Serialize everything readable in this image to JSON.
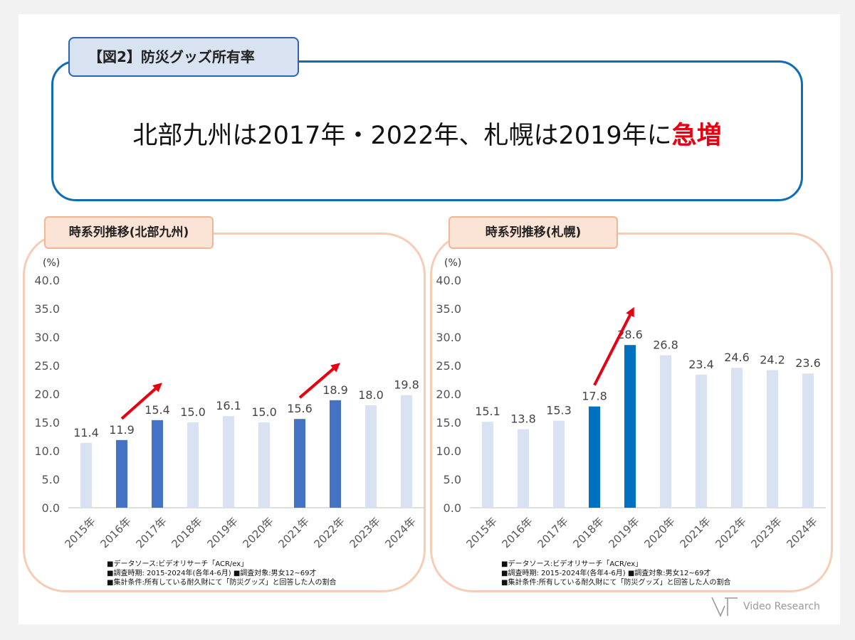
{
  "figure_label": "【図2】防災グッズ所有率",
  "headline": {
    "text": "北部九州は2017年・2022年、札幌は2019年に",
    "emphasis": "急増"
  },
  "colors": {
    "highlight_bar": "#4472c4",
    "highlight_bar_sapporo": "#0070c0",
    "base_bar": "#d9e2f3",
    "arrow": "#e60012",
    "headline_emphasis": "#e60012"
  },
  "chart_data": [
    {
      "type": "bar",
      "title": "時系列推移(北部九州)",
      "ylabel": "(%)",
      "categories": [
        "2015年",
        "2016年",
        "2017年",
        "2018年",
        "2019年",
        "2020年",
        "2021年",
        "2022年",
        "2023年",
        "2024年"
      ],
      "values": [
        11.4,
        11.9,
        15.4,
        15.0,
        16.1,
        15.0,
        15.6,
        18.9,
        18.0,
        19.8
      ],
      "value_labels": [
        "11.4",
        "11.9",
        "15.4",
        "15.0",
        "16.1",
        "15.0",
        "15.6",
        "18.9",
        "18.0",
        "19.8"
      ],
      "highlighted": [
        "2016年",
        "2017年",
        "2021年",
        "2022年"
      ],
      "ylim": [
        0,
        40
      ],
      "yticks": [
        "0.0",
        "5.0",
        "10.0",
        "15.0",
        "20.0",
        "25.0",
        "30.0",
        "35.0",
        "40.0"
      ],
      "grid": false,
      "annotations": [
        {
          "type": "arrow",
          "from_category": "2016年",
          "to_category": "2017年"
        },
        {
          "type": "arrow",
          "from_category": "2021年",
          "to_category": "2022年"
        }
      ],
      "notes": [
        "■データソース:ビデオリサーチ「ACR/ex」",
        "■調査時期: 2015-2024年(各年4-6月) ■調査対象:男女12~69才",
        "■集計条件:所有している耐久財にて「防災グッズ」と回答した人の割合"
      ]
    },
    {
      "type": "bar",
      "title": "時系列推移(札幌)",
      "ylabel": "(%)",
      "categories": [
        "2015年",
        "2016年",
        "2017年",
        "2018年",
        "2019年",
        "2020年",
        "2021年",
        "2022年",
        "2023年",
        "2024年"
      ],
      "values": [
        15.1,
        13.8,
        15.3,
        17.8,
        28.6,
        26.8,
        23.4,
        24.6,
        24.2,
        23.6
      ],
      "value_labels": [
        "15.1",
        "13.8",
        "15.3",
        "17.8",
        "28.6",
        "26.8",
        "23.4",
        "24.6",
        "24.2",
        "23.6"
      ],
      "highlighted": [
        "2018年",
        "2019年"
      ],
      "ylim": [
        0,
        40
      ],
      "yticks": [
        "0.0",
        "5.0",
        "10.0",
        "15.0",
        "20.0",
        "25.0",
        "30.0",
        "35.0",
        "40.0"
      ],
      "grid": false,
      "annotations": [
        {
          "type": "arrow",
          "from_category": "2018年",
          "to_category": "2019年"
        }
      ],
      "notes": [
        "■データソース:ビデオリサーチ「ACR/ex」",
        "■調査時期: 2015-2024年(各年4-6月) ■調査対象:男女12~69才",
        "■集計条件:所有している耐久財にて「防災グッズ」と回答した人の割合"
      ]
    }
  ],
  "logo": {
    "text": "Video Research"
  }
}
